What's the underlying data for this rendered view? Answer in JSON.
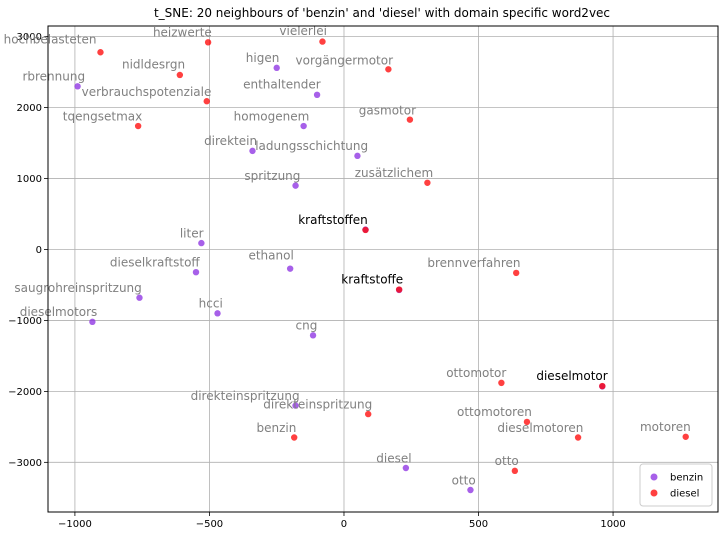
{
  "chart_data": {
    "type": "scatter",
    "title": "t_SNE: 20 neighbours of 'benzin' and 'diesel' with domain specific word2vec",
    "xlabel": "",
    "ylabel": "",
    "xlim": [
      -1100,
      1390
    ],
    "ylim": [
      -3700,
      3150
    ],
    "x_ticks": [
      -1000,
      -500,
      0,
      500,
      1000
    ],
    "x_tick_labels": [
      "−1000",
      "−500",
      "0",
      "500",
      "1000"
    ],
    "y_ticks": [
      -3000,
      -2000,
      -1000,
      0,
      1000,
      2000,
      3000
    ],
    "y_tick_labels": [
      "−3000",
      "−2000",
      "−1000",
      "0",
      "1000",
      "2000",
      "3000"
    ],
    "grid": true,
    "legend_position": "bottom-right",
    "series": [
      {
        "name": "benzin",
        "color": "#8a2be2",
        "points": [
          {
            "x": -990,
            "y": 2300
          },
          {
            "x": -250,
            "y": 2560
          },
          {
            "x": -100,
            "y": 2180
          },
          {
            "x": -150,
            "y": 1740
          },
          {
            "x": -340,
            "y": 1390
          },
          {
            "x": 50,
            "y": 1320
          },
          {
            "x": -180,
            "y": 900
          },
          {
            "x": -530,
            "y": 90
          },
          {
            "x": -550,
            "y": -320
          },
          {
            "x": -200,
            "y": -270
          },
          {
            "x": -760,
            "y": -680
          },
          {
            "x": -470,
            "y": -900
          },
          {
            "x": -935,
            "y": -1020
          },
          {
            "x": -115,
            "y": -1210
          },
          {
            "x": -180,
            "y": -2200
          },
          {
            "x": 230,
            "y": -3080
          },
          {
            "x": 470,
            "y": -3390
          },
          {
            "x": 80,
            "y": 280
          },
          {
            "x": 205,
            "y": -570
          },
          {
            "x": 960,
            "y": -1930
          }
        ]
      },
      {
        "name": "diesel",
        "color": "#ff0000",
        "points": [
          {
            "x": -905,
            "y": 2780
          },
          {
            "x": -505,
            "y": 2920
          },
          {
            "x": -80,
            "y": 2930
          },
          {
            "x": 165,
            "y": 2540
          },
          {
            "x": -610,
            "y": 2460
          },
          {
            "x": -510,
            "y": 2090
          },
          {
            "x": -765,
            "y": 1740
          },
          {
            "x": 245,
            "y": 1830
          },
          {
            "x": 310,
            "y": 940
          },
          {
            "x": 80,
            "y": 275
          },
          {
            "x": 205,
            "y": -565
          },
          {
            "x": 640,
            "y": -330
          },
          {
            "x": 585,
            "y": -1880
          },
          {
            "x": 960,
            "y": -1925
          },
          {
            "x": 680,
            "y": -2430
          },
          {
            "x": 90,
            "y": -2320
          },
          {
            "x": -185,
            "y": -2650
          },
          {
            "x": 870,
            "y": -2650
          },
          {
            "x": 1270,
            "y": -2640
          },
          {
            "x": 635,
            "y": -3120
          }
        ]
      }
    ],
    "annotations": [
      {
        "text": "hochbelasteten",
        "x": -1265,
        "y": 2900,
        "color": "#808080"
      },
      {
        "text": "heizwerte",
        "x": -710,
        "y": 3000,
        "color": "#808080"
      },
      {
        "text": "vielerlei",
        "x": -240,
        "y": 3020,
        "color": "#808080"
      },
      {
        "text": "higen",
        "x": -365,
        "y": 2640,
        "color": "#808080"
      },
      {
        "text": "vorgängermotor",
        "x": -180,
        "y": 2610,
        "color": "#808080"
      },
      {
        "text": "nidldesrgn",
        "x": -825,
        "y": 2550,
        "color": "#808080"
      },
      {
        "text": "rbrennung",
        "x": -1195,
        "y": 2380,
        "color": "#808080"
      },
      {
        "text": "enthaltender",
        "x": -375,
        "y": 2270,
        "color": "#808080"
      },
      {
        "text": "verbrauchspotenziale",
        "x": -975,
        "y": 2160,
        "color": "#808080"
      },
      {
        "text": "tqengsetmax",
        "x": -1045,
        "y": 1820,
        "color": "#808080"
      },
      {
        "text": "homogenem",
        "x": -410,
        "y": 1820,
        "color": "#808080"
      },
      {
        "text": "gasmotor",
        "x": 55,
        "y": 1900,
        "color": "#808080"
      },
      {
        "text": "direktein",
        "x": -520,
        "y": 1470,
        "color": "#808080"
      },
      {
        "text": "ladungsschichtung",
        "x": -330,
        "y": 1400,
        "color": "#808080"
      },
      {
        "text": "zusätzlichem",
        "x": 40,
        "y": 1020,
        "color": "#808080"
      },
      {
        "text": "spritzung",
        "x": -370,
        "y": 980,
        "color": "#808080"
      },
      {
        "text": "kraftstoffen",
        "x": -170,
        "y": 360,
        "color": "#000000"
      },
      {
        "text": "liter",
        "x": -610,
        "y": 170,
        "color": "#808080"
      },
      {
        "text": "ethanol",
        "x": -355,
        "y": -140,
        "color": "#808080"
      },
      {
        "text": "dieselkraftstoff",
        "x": -870,
        "y": -240,
        "color": "#808080"
      },
      {
        "text": "brennverfahren",
        "x": 310,
        "y": -250,
        "color": "#808080"
      },
      {
        "text": "kraftstoffe",
        "x": -10,
        "y": -480,
        "color": "#000000"
      },
      {
        "text": "saugrohreinspritzung",
        "x": -1225,
        "y": -600,
        "color": "#808080"
      },
      {
        "text": "hcci",
        "x": -540,
        "y": -820,
        "color": "#808080"
      },
      {
        "text": "dieselmotors",
        "x": -1205,
        "y": -940,
        "color": "#808080"
      },
      {
        "text": "cng",
        "x": -180,
        "y": -1130,
        "color": "#808080"
      },
      {
        "text": "ottomotor",
        "x": 380,
        "y": -1800,
        "color": "#808080"
      },
      {
        "text": "dieselmotor",
        "x": 715,
        "y": -1840,
        "color": "#000000"
      },
      {
        "text": "direkteinspritzung",
        "x": -570,
        "y": -2120,
        "color": "#808080"
      },
      {
        "text": "direkteinspritzung",
        "x": -300,
        "y": -2240,
        "color": "#808080"
      },
      {
        "text": "ottomotoren",
        "x": 420,
        "y": -2350,
        "color": "#808080"
      },
      {
        "text": "benzin",
        "x": -325,
        "y": -2570,
        "color": "#808080"
      },
      {
        "text": "dieselmotoren",
        "x": 570,
        "y": -2570,
        "color": "#808080"
      },
      {
        "text": "motoren",
        "x": 1100,
        "y": -2560,
        "color": "#808080"
      },
      {
        "text": "diesel",
        "x": 120,
        "y": -3000,
        "color": "#808080"
      },
      {
        "text": "otto",
        "x": 560,
        "y": -3040,
        "color": "#808080"
      },
      {
        "text": "otto",
        "x": 400,
        "y": -3310,
        "color": "#808080"
      }
    ]
  }
}
